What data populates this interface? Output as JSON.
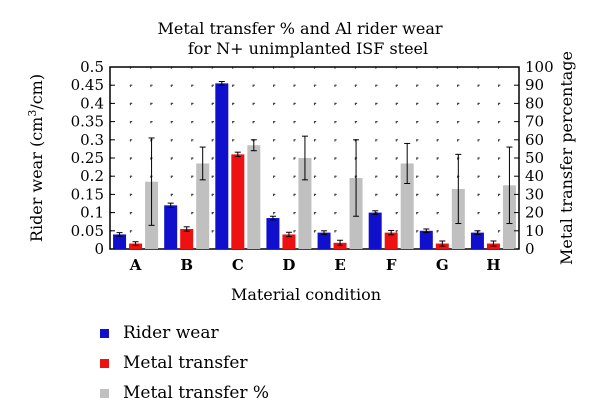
{
  "chart_data": {
    "type": "bar",
    "title_line1": "Metal transfer % and Al rider wear",
    "title_line2": "for N+ unimplanted ISF steel",
    "xlabel": "Material condition",
    "ylabel_left_prefix": "Rider wear (cm",
    "ylabel_left_sup": "3",
    "ylabel_left_suffix": "/cm)",
    "ylabel_right": "Metal transfer percentage",
    "categories": [
      "A",
      "B",
      "C",
      "D",
      "E",
      "F",
      "G",
      "H"
    ],
    "ylim_left": [
      0,
      0.5
    ],
    "yticks_left": [
      "0",
      "0.05",
      "0.1",
      "0.15",
      "0.2",
      "0.25",
      "0.3",
      "0.35",
      "0.4",
      "0.45",
      "0.5"
    ],
    "ylim_right": [
      0,
      100
    ],
    "yticks_right": [
      "0",
      "10",
      "20",
      "30",
      "40",
      "50",
      "60",
      "70",
      "80",
      "90",
      "100"
    ],
    "grid": "dotted",
    "legend_position": "bottom-left",
    "series": [
      {
        "name": "Rider wear",
        "axis": "left",
        "color": "#1010cc",
        "values": [
          0.04,
          0.12,
          0.455,
          0.085,
          0.045,
          0.1,
          0.05,
          0.045
        ],
        "errors": [
          0.005,
          0.006,
          0.005,
          0.005,
          0.005,
          0.005,
          0.005,
          0.005
        ]
      },
      {
        "name": "Metal transfer",
        "axis": "left",
        "color": "#ee1111",
        "values": [
          0.015,
          0.055,
          0.26,
          0.04,
          0.017,
          0.045,
          0.015,
          0.015
        ],
        "errors": [
          0.005,
          0.006,
          0.006,
          0.006,
          0.007,
          0.006,
          0.007,
          0.007
        ]
      },
      {
        "name": "Metal transfer %",
        "axis": "right",
        "color": "#c0c0c0",
        "values": [
          37,
          47,
          57,
          50,
          39,
          47,
          33,
          35
        ],
        "errors": [
          24,
          9,
          3,
          12,
          21,
          11,
          19,
          21
        ]
      }
    ]
  }
}
